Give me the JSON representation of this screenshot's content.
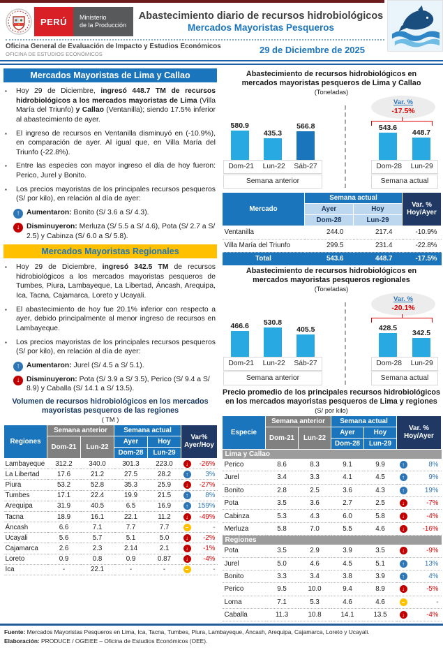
{
  "icons": {
    "up": "↑",
    "down": "↓",
    "eq": "–",
    "bullet": "▪"
  },
  "colors": {
    "brand_blue": "#1B75BC",
    "navy": "#1F3864",
    "yellow": "#FFC000",
    "red_icon": "#C00000",
    "bar_light_blue": "#29A9E1",
    "bar_dark_blue": "#1B75BC",
    "gray_header": "#808080",
    "var_up_text": "#2E75B6",
    "var_down_text": "#E60000"
  },
  "header": {
    "peru": "PERÚ",
    "ministry_line1": "Ministerio",
    "ministry_line2": "de la Producción",
    "title": "Abastecimiento diario de recursos hidrobiológicos",
    "subtitle": "Mercados Mayoristas Pesqueros",
    "office_line1": "Oficina General de Evaluación de Impacto y Estudios Económicos",
    "office_line2": "OFICINA DE ESTUDIOS ECONÓMICOS",
    "date": "29 de Diciembre de 2025"
  },
  "left": {
    "section1": {
      "title": "Mercados Mayoristas de Lima y Callao",
      "bullets": [
        {
          "icon": "square",
          "segments": [
            {
              "t": "Hoy 29 de Diciembre, "
            },
            {
              "t": "ingresó 448.7 TM de recursos hidrobiológicos a los mercados mayoristas de Lima",
              "b": true
            },
            {
              "t": " (Villa María del Triunfo) "
            },
            {
              "t": "y Callao",
              "b": true
            },
            {
              "t": " (Ventanilla); siendo 17.5% inferior al abastecimiento de ayer."
            }
          ]
        },
        {
          "icon": "square",
          "segments": [
            {
              "t": "El ingreso de recursos en Ventanilla disminuyó en (-10.9%), en comparación de ayer. Al igual que, en Villa María del Triunfo (-22.8%)."
            }
          ]
        },
        {
          "icon": "square",
          "segments": [
            {
              "t": "Entre las especies con mayor ingreso el día de hoy fueron: Perico, Jurel y Bonito."
            }
          ]
        },
        {
          "icon": "square",
          "segments": [
            {
              "t": "Los precios mayoristas de los principales recursos pesqueros (S/ por kilo), en relación al día de ayer:"
            }
          ]
        },
        {
          "icon": "up",
          "segments": [
            {
              "t": "Aumentaron:",
              "b": true
            },
            {
              "t": " Bonito (S/ 3.6 a S/ 4.3)."
            }
          ]
        },
        {
          "icon": "down",
          "segments": [
            {
              "t": "Disminuyeron:",
              "b": true
            },
            {
              "t": " Merluza (S/ 5.5 a S/ 4.6), Pota (S/ 2.7 a S/ 2.5) y Cabinza (S/ 6.0 a S/ 5.8)."
            }
          ]
        }
      ]
    },
    "section2": {
      "title": "Mercados Mayoristas Regionales",
      "bullets": [
        {
          "icon": "square",
          "segments": [
            {
              "t": "Hoy 29 de Diciembre, "
            },
            {
              "t": "ingresó 342.5 TM",
              "b": true
            },
            {
              "t": " de recursos hidrobiológicos a los mercados mayoristas pesqueros de Tumbes, Piura, Lambayeque, La Libertad, Áncash, Arequipa, Ica, Tacna, Cajamarca, Loreto y Ucayali."
            }
          ]
        },
        {
          "icon": "square",
          "segments": [
            {
              "t": "El abastecimiento de hoy fue 20.1% inferior con respecto a ayer, debido principalmente al menor ingreso de recursos en Lambayeque."
            }
          ]
        },
        {
          "icon": "square",
          "segments": [
            {
              "t": "Los precios mayoristas de los principales recursos pesqueros (S/ por kilo), en relación al día de ayer:"
            }
          ]
        },
        {
          "icon": "up",
          "segments": [
            {
              "t": "Aumentaron:",
              "b": true
            },
            {
              "t": " Jurel (S/ 4.5 a S/ 5.1)."
            }
          ]
        },
        {
          "icon": "down",
          "segments": [
            {
              "t": "Disminuyeron:",
              "b": true
            },
            {
              "t": " Pota (S/ 3.9 a S/ 3.5), Perico (S/ 9.4 a S/ 8.9) y Caballa (S/ 14.1 a S/ 13.5)."
            }
          ]
        }
      ]
    },
    "regions_table": {
      "title": "Volumen de recursos hidrobiológicos en los mercados mayoristas pesqueros de las regiones",
      "unit": "( TM )",
      "headers": {
        "corner": "Regiones",
        "prev_week": "Semana anterior",
        "curr_week": "Semana actual",
        "prev_days": [
          "Dom-21",
          "Lun-22"
        ],
        "ayer": "Ayer",
        "hoy": "Hoy",
        "curr_days": [
          "Dom-28",
          "Lun-29"
        ],
        "var_line1": "Var%",
        "var_line2": "Ayer/Hoy"
      },
      "rows": [
        {
          "name": "Lambayeque",
          "values": [
            "312.2",
            "340.0",
            "301.3",
            "223.0"
          ],
          "dir": "down",
          "var": "-26%"
        },
        {
          "name": "La Libertad",
          "values": [
            "17.6",
            "21.2",
            "27.5",
            "28.2"
          ],
          "dir": "up",
          "var": "3%"
        },
        {
          "name": "Piura",
          "values": [
            "53.2",
            "52.8",
            "35.3",
            "25.9"
          ],
          "dir": "down",
          "var": "-27%"
        },
        {
          "name": "Tumbes",
          "values": [
            "17.1",
            "22.4",
            "19.9",
            "21.5"
          ],
          "dir": "up",
          "var": "8%"
        },
        {
          "name": "Arequipa",
          "values": [
            "31.9",
            "40.5",
            "6.5",
            "16.9"
          ],
          "dir": "up",
          "var": "159%"
        },
        {
          "name": "Tacna",
          "values": [
            "18.9",
            "16.1",
            "22.1",
            "11.2"
          ],
          "dir": "down",
          "var": "-49%"
        },
        {
          "name": "Áncash",
          "values": [
            "6.6",
            "7.1",
            "7.7",
            "7.7"
          ],
          "dir": "eq",
          "var": "-"
        },
        {
          "name": "Ucayali",
          "values": [
            "5.6",
            "5.7",
            "5.1",
            "5.0"
          ],
          "dir": "down",
          "var": "-2%"
        },
        {
          "name": "Cajamarca",
          "values": [
            "2.6",
            "2.3",
            "2.14",
            "2.1"
          ],
          "dir": "down",
          "var": "-1%"
        },
        {
          "name": "Loreto",
          "values": [
            "0.9",
            "0.8",
            "0.9",
            "0.87"
          ],
          "dir": "down",
          "var": "-4%"
        },
        {
          "name": "Ica",
          "values": [
            "-",
            "22.1",
            "-",
            "-"
          ],
          "dir": "eq",
          "var": "-"
        }
      ]
    }
  },
  "right": {
    "market_table": {
      "headers": {
        "corner": "Mercado",
        "curr_week": "Semana actual",
        "ayer": "Ayer",
        "hoy": "Hoy",
        "curr_days": [
          "Dom-28",
          "Lun-29"
        ],
        "var_line1": "Var. %",
        "var_line2": "Hoy/Ayer"
      },
      "rows": [
        {
          "name": "Ventanilla",
          "ayer": "244.0",
          "hoy": "217.4",
          "var": "-10.9%"
        },
        {
          "name": "Villa María del Triunfo",
          "ayer": "299.5",
          "hoy": "231.4",
          "var": "-22.8%"
        }
      ],
      "total": {
        "name": "Total",
        "ayer": "543.6",
        "hoy": "448.7",
        "var": "-17.5%"
      }
    },
    "price_table": {
      "title": "Precio promedio de los principales recursos hidrobiológicos en los mercados mayoristas pesqueros de Lima y regiones",
      "unit": "(S/ por kilo)",
      "headers": {
        "corner": "Especie",
        "prev_week": "Semana anterior",
        "curr_week": "Semana actual",
        "prev_days": [
          "Dom-21",
          "Lun-22"
        ],
        "ayer": "Ayer",
        "hoy": "Hoy",
        "curr_days": [
          "Dom-28",
          "Lun-29"
        ],
        "var_line1": "Var. %",
        "var_line2": "Hoy/Ayer"
      },
      "sections": [
        {
          "label": "Lima y Callao",
          "rows": [
            {
              "name": "Perico",
              "values": [
                "8.6",
                "8.3",
                "9.1",
                "9.9"
              ],
              "dir": "up",
              "var": "8%"
            },
            {
              "name": "Jurel",
              "values": [
                "3.4",
                "3.3",
                "4.1",
                "4.5"
              ],
              "dir": "up",
              "var": "9%"
            },
            {
              "name": "Bonito",
              "values": [
                "2.8",
                "2.5",
                "3.6",
                "4.3"
              ],
              "dir": "up",
              "var": "19%"
            },
            {
              "name": "Pota",
              "values": [
                "3.5",
                "3.6",
                "2.7",
                "2.5"
              ],
              "dir": "down",
              "var": "-7%"
            },
            {
              "name": "Cabinza",
              "values": [
                "5.3",
                "4.3",
                "6.0",
                "5.8"
              ],
              "dir": "down",
              "var": "-4%"
            },
            {
              "name": "Merluza",
              "values": [
                "5.8",
                "7.0",
                "5.5",
                "4.6"
              ],
              "dir": "down",
              "var": "-16%"
            }
          ]
        },
        {
          "label": "Regiones",
          "rows": [
            {
              "name": "Pota",
              "values": [
                "3.5",
                "2.9",
                "3.9",
                "3.5"
              ],
              "dir": "down",
              "var": "-9%"
            },
            {
              "name": "Jurel",
              "values": [
                "5.0",
                "4.6",
                "4.5",
                "5.1"
              ],
              "dir": "up",
              "var": "13%"
            },
            {
              "name": "Bonito",
              "values": [
                "3.3",
                "3.4",
                "3.8",
                "3.9"
              ],
              "dir": "up",
              "var": "4%"
            },
            {
              "name": "Perico",
              "values": [
                "9.5",
                "10.0",
                "9.4",
                "8.9"
              ],
              "dir": "down",
              "var": "-5%"
            },
            {
              "name": "Lorna",
              "values": [
                "7.1",
                "5.3",
                "4.6",
                "4.6"
              ],
              "dir": "eq",
              "var": "-"
            },
            {
              "name": "Caballa",
              "values": [
                "11.3",
                "10.8",
                "14.1",
                "13.5"
              ],
              "dir": "down",
              "var": "-4%"
            }
          ]
        }
      ]
    }
  },
  "chart_data": [
    {
      "type": "bar",
      "title": "Abastecimiento de recursos hidrobiológicos en mercados mayoristas pesqueros de Lima y Callao",
      "unit": "(Toneladas)",
      "categories": [
        "Dom-21",
        "Lun-22",
        "Sáb-27",
        "Dom-28",
        "Lun-29"
      ],
      "values": [
        580.9,
        435.3,
        566.8,
        543.6,
        448.7
      ],
      "group_labels": [
        "Semana anterior",
        "Semana actual"
      ],
      "group_split": 3,
      "var_label": "Var. %",
      "var_value": "-17.5%",
      "bar_colors": [
        "#29A9E1",
        "#29A9E1",
        "#1B75BC",
        "#29A9E1",
        "#29A9E1"
      ],
      "xlabel": "",
      "ylabel": "",
      "ylim": [
        0,
        650
      ],
      "grid": false,
      "legend": "none"
    },
    {
      "type": "bar",
      "title": "Abastecimiento de recursos hidrobiológicos en mercados mayoristas pesqueros regionales",
      "unit": "(Toneladas)",
      "categories": [
        "Dom-21",
        "Lun-22",
        "Sáb-27",
        "Dom-28",
        "Lun-29"
      ],
      "values": [
        466.6,
        530.8,
        405.5,
        428.5,
        342.5
      ],
      "group_labels": [
        "Semana anterior",
        "Semana actual"
      ],
      "group_split": 3,
      "var_label": "Var. %",
      "var_value": "-20.1%",
      "bar_colors": [
        "#29A9E1",
        "#29A9E1",
        "#29A9E1",
        "#29A9E1",
        "#29A9E1"
      ],
      "xlabel": "",
      "ylabel": "",
      "ylim": [
        0,
        600
      ],
      "grid": false,
      "legend": "none"
    }
  ],
  "footer": {
    "fuente_label": "Fuente:",
    "fuente": " Mercados Mayoristas Pesqueros en Lima, Ica, Tacna, Tumbes, Piura, Lambayeque, Áncash, Arequipa, Cajamarca, Loreto y Ucayali.",
    "elaboracion_label": "Elaboración:",
    "elaboracion": " PRODUCE / OGEIEE – Oficina de Estudios Económicos (OEE)."
  }
}
